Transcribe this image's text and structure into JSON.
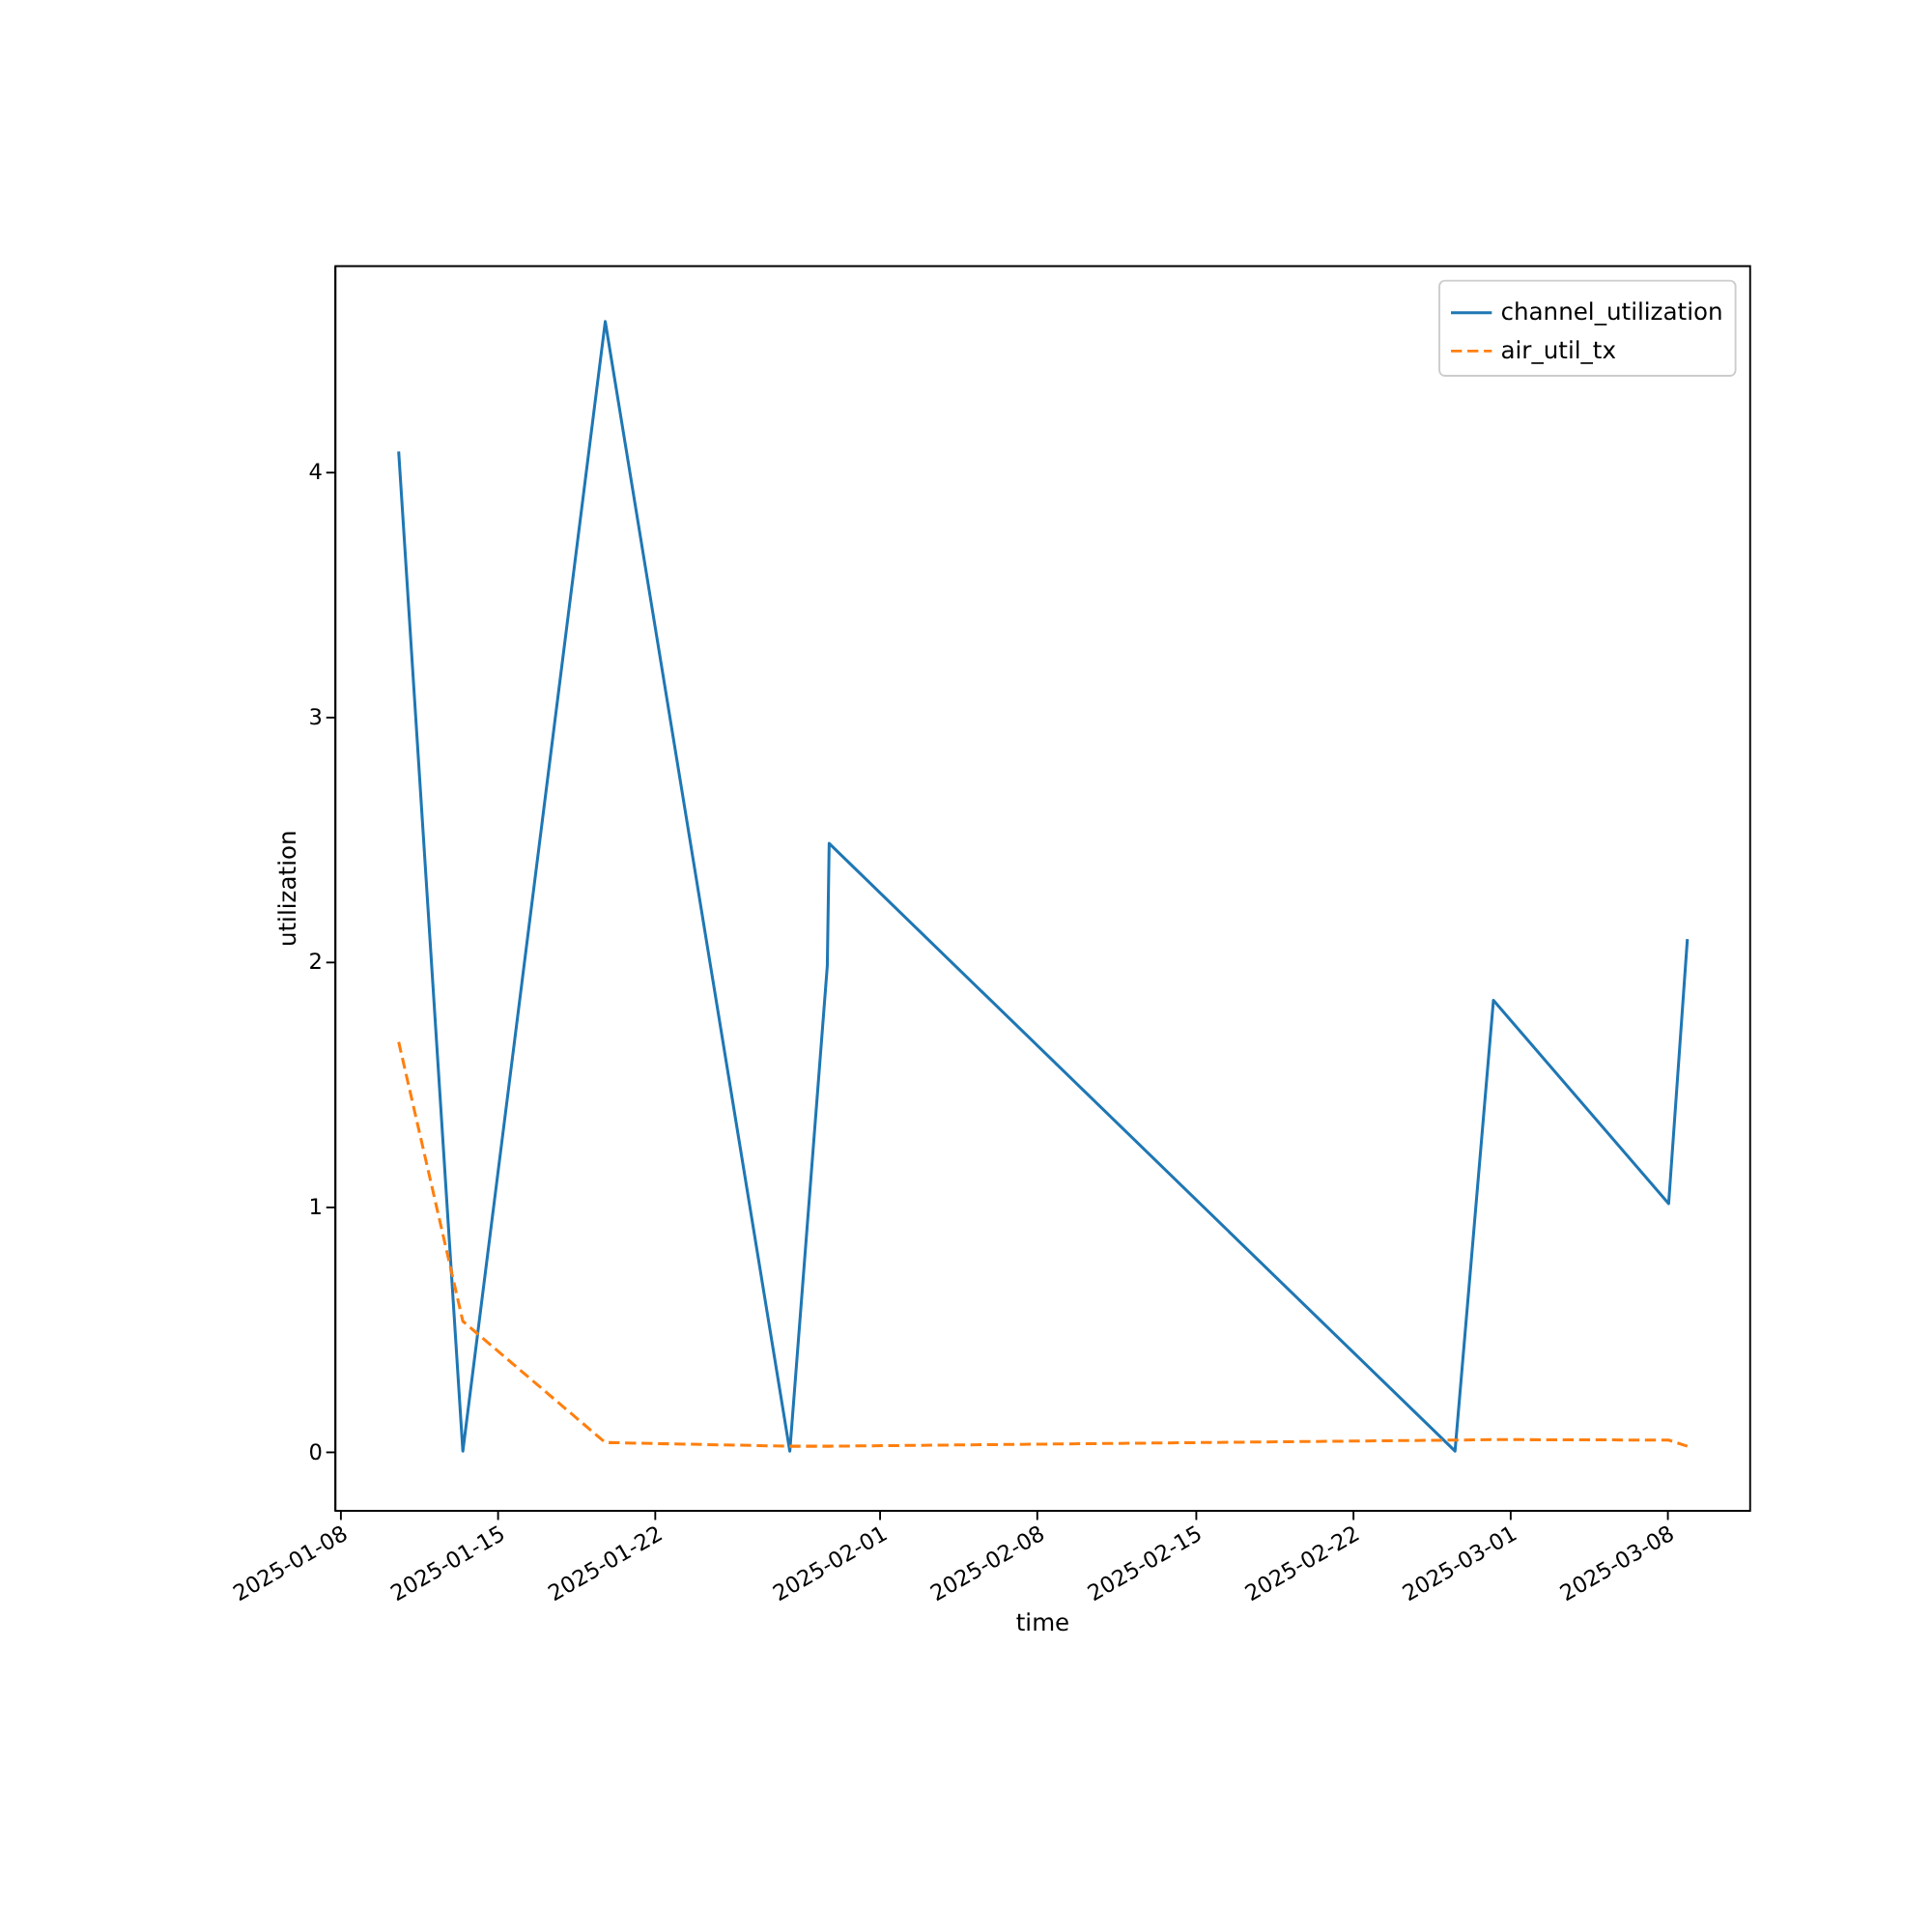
{
  "chart_data": {
    "type": "line",
    "xlabel": "time",
    "ylabel": "utilization",
    "x": [
      "2025-01-10T14:30",
      "2025-01-13T11:00",
      "2025-01-19T19:00",
      "2025-01-28T00:00",
      "2025-01-29T16:00",
      "2025-01-29T18:00",
      "2025-02-26T14:00",
      "2025-02-28T07:00",
      "2025-03-08T02:00",
      "2025-03-08T22:00"
    ],
    "series": [
      {
        "name": "channel_utilization",
        "color": "#1f77b4",
        "line_style": "solid",
        "values": [
          4.08,
          0.0,
          4.61,
          0.0,
          1.98,
          2.48,
          0.0,
          1.84,
          1.01,
          2.09
        ]
      },
      {
        "name": "air_util_tx",
        "color": "#ff7f0e",
        "line_style": "dashed",
        "values": [
          1.67,
          0.53,
          0.035,
          0.02,
          0.02,
          0.02,
          0.045,
          0.047,
          0.045,
          0.02
        ]
      }
    ],
    "xlim": [
      "2025-01-07T18:00",
      "2025-03-11T16:00"
    ],
    "xticks": [
      "2025-01-08",
      "2025-01-15",
      "2025-01-22",
      "2025-02-01",
      "2025-02-08",
      "2025-02-15",
      "2025-02-22",
      "2025-03-01",
      "2025-03-08"
    ],
    "ylim": [
      -0.24,
      4.84
    ],
    "yticks": [
      0,
      1,
      2,
      3,
      4
    ],
    "grid": false,
    "legend": "top right",
    "marker": "none"
  }
}
